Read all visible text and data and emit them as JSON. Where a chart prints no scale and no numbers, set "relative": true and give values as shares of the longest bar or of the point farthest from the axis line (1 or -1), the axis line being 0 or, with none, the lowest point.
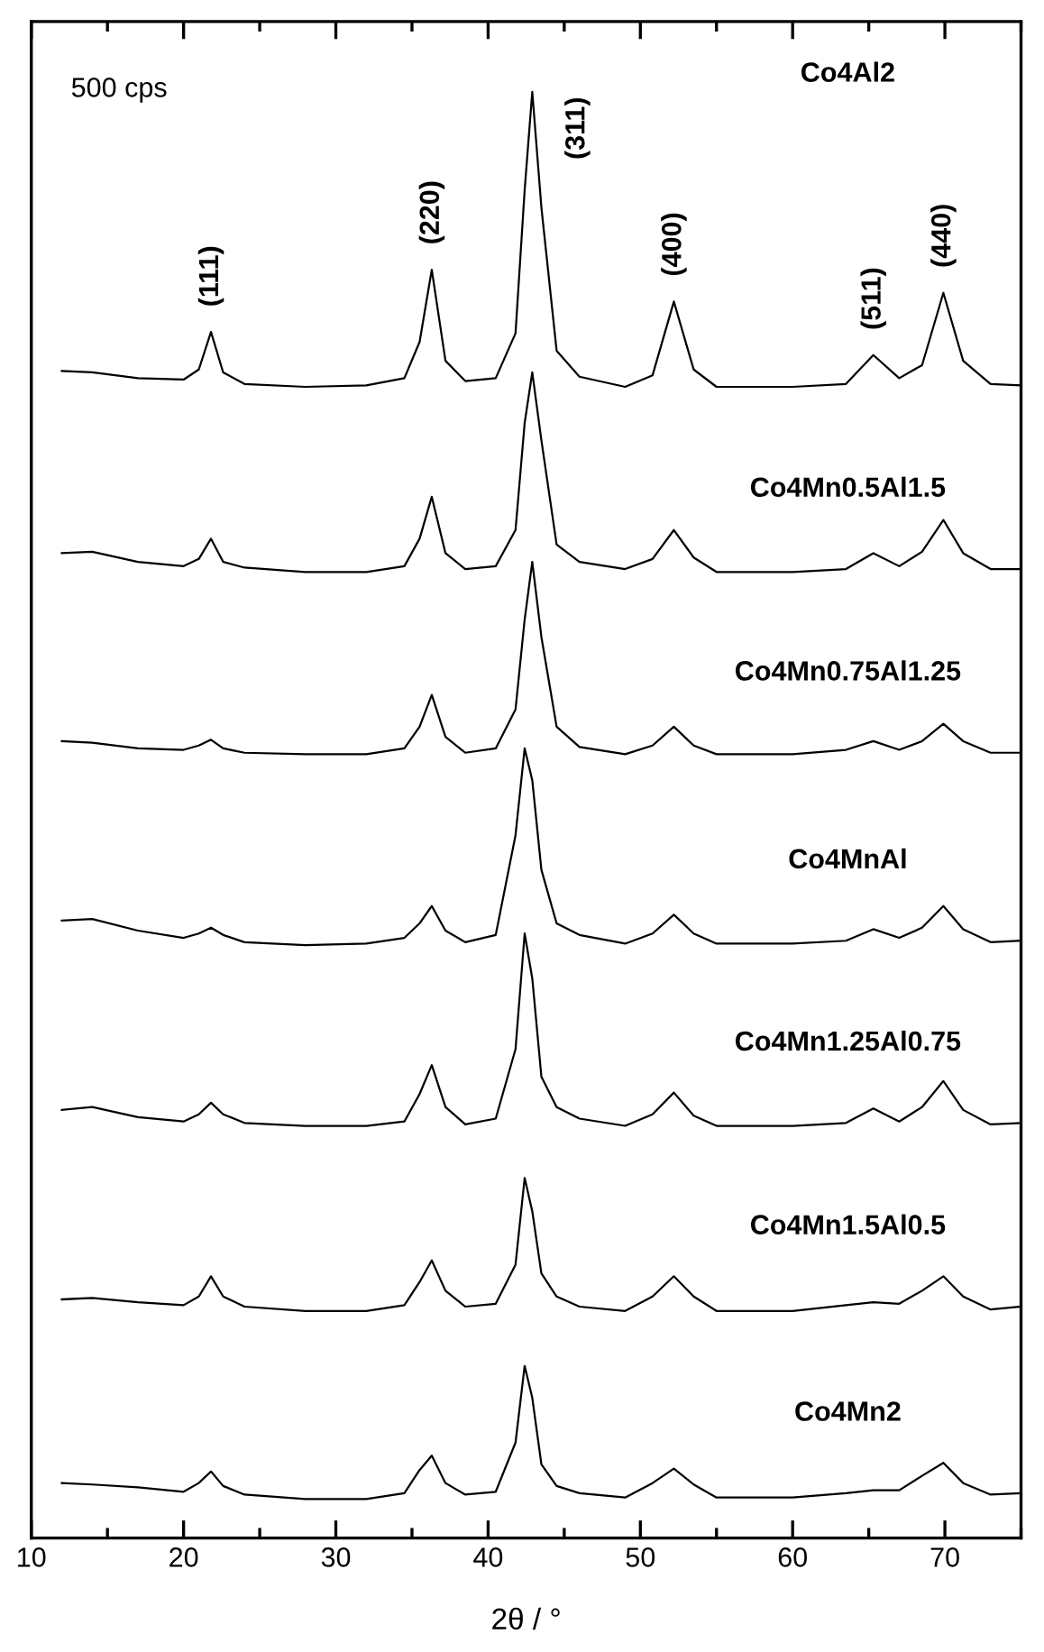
{
  "chart_data": {
    "type": "line",
    "relative": true,
    "xlabel": "2θ / °",
    "tick_labels": "x",
    "xlim": [
      10,
      75
    ],
    "xticks": [
      10,
      {
        "value": 15,
        "label": null
      },
      20,
      {
        "value": 25,
        "label": null
      },
      30,
      {
        "value": 35,
        "label": null
      },
      40,
      {
        "value": 45,
        "label": null
      },
      50,
      {
        "value": 55,
        "label": null
      },
      60,
      {
        "value": 65,
        "label": null
      },
      70,
      {
        "value": 75,
        "label": null
      }
    ],
    "x": [
      12,
      14,
      17,
      20,
      21,
      21.8,
      22.6,
      24,
      28,
      32,
      34.5,
      35.5,
      36.3,
      37.2,
      38.5,
      40.5,
      41.8,
      42.4,
      42.9,
      43.5,
      44.5,
      46,
      49,
      50.8,
      52.2,
      53.5,
      55,
      60,
      63.5,
      65.3,
      67,
      68.5,
      69.9,
      71.2,
      73,
      75
    ],
    "series": [
      {
        "name": "Co4Al2",
        "color": "#000000",
        "values": [
          0.807,
          0.806,
          0.802,
          0.801,
          0.808,
          0.834,
          0.806,
          0.798,
          0.796,
          0.797,
          0.802,
          0.827,
          0.877,
          0.814,
          0.8,
          0.802,
          0.833,
          0.932,
          1.0,
          0.92,
          0.821,
          0.803,
          0.796,
          0.804,
          0.855,
          0.808,
          0.796,
          0.796,
          0.798,
          0.818,
          0.802,
          0.811,
          0.861,
          0.814,
          0.798,
          0.797
        ]
      },
      {
        "name": "Co4Mn0.5Al1.5",
        "color": "#000000",
        "values": [
          0.681,
          0.682,
          0.675,
          0.672,
          0.677,
          0.691,
          0.675,
          0.671,
          0.668,
          0.668,
          0.672,
          0.691,
          0.72,
          0.681,
          0.67,
          0.672,
          0.697,
          0.771,
          0.806,
          0.759,
          0.687,
          0.675,
          0.67,
          0.677,
          0.697,
          0.678,
          0.668,
          0.668,
          0.67,
          0.681,
          0.672,
          0.682,
          0.704,
          0.681,
          0.67,
          0.67
        ]
      },
      {
        "name": "Co4Mn0.75Al1.25",
        "color": "#000000",
        "values": [
          0.551,
          0.55,
          0.546,
          0.545,
          0.548,
          0.552,
          0.546,
          0.543,
          0.542,
          0.542,
          0.546,
          0.561,
          0.583,
          0.554,
          0.543,
          0.546,
          0.573,
          0.635,
          0.675,
          0.623,
          0.561,
          0.547,
          0.542,
          0.548,
          0.561,
          0.548,
          0.542,
          0.542,
          0.545,
          0.551,
          0.545,
          0.551,
          0.563,
          0.551,
          0.543,
          0.543
        ]
      },
      {
        "name": "Co4MnAl",
        "color": "#000000",
        "values": [
          0.427,
          0.428,
          0.42,
          0.415,
          0.418,
          0.422,
          0.417,
          0.412,
          0.41,
          0.411,
          0.415,
          0.425,
          0.437,
          0.42,
          0.412,
          0.417,
          0.486,
          0.546,
          0.524,
          0.462,
          0.425,
          0.417,
          0.411,
          0.418,
          0.431,
          0.418,
          0.411,
          0.411,
          0.413,
          0.421,
          0.415,
          0.422,
          0.437,
          0.421,
          0.412,
          0.413
        ]
      },
      {
        "name": "Co4Mn1.25Al0.75",
        "color": "#000000",
        "values": [
          0.296,
          0.298,
          0.291,
          0.288,
          0.293,
          0.301,
          0.293,
          0.287,
          0.285,
          0.285,
          0.288,
          0.307,
          0.327,
          0.298,
          0.286,
          0.29,
          0.338,
          0.418,
          0.387,
          0.319,
          0.298,
          0.29,
          0.285,
          0.293,
          0.308,
          0.292,
          0.285,
          0.285,
          0.287,
          0.297,
          0.288,
          0.298,
          0.316,
          0.296,
          0.286,
          0.287
        ]
      },
      {
        "name": "Co4Mn1.5Al0.5",
        "color": "#000000",
        "values": [
          0.165,
          0.166,
          0.163,
          0.161,
          0.167,
          0.181,
          0.167,
          0.16,
          0.157,
          0.157,
          0.161,
          0.177,
          0.192,
          0.171,
          0.16,
          0.162,
          0.189,
          0.249,
          0.226,
          0.183,
          0.167,
          0.16,
          0.157,
          0.167,
          0.181,
          0.167,
          0.157,
          0.157,
          0.161,
          0.163,
          0.162,
          0.171,
          0.181,
          0.167,
          0.158,
          0.16
        ]
      },
      {
        "name": "Co4Mn2",
        "color": "#000000",
        "values": [
          0.038,
          0.037,
          0.035,
          0.032,
          0.038,
          0.046,
          0.036,
          0.03,
          0.027,
          0.027,
          0.031,
          0.047,
          0.057,
          0.038,
          0.03,
          0.032,
          0.066,
          0.119,
          0.097,
          0.051,
          0.036,
          0.031,
          0.028,
          0.038,
          0.048,
          0.037,
          0.028,
          0.028,
          0.031,
          0.033,
          0.033,
          0.043,
          0.052,
          0.038,
          0.03,
          0.031
        ]
      }
    ],
    "annotations": [
      "500 cps",
      {
        "text": "(111)",
        "x": 21.8,
        "y": 0.834
      },
      {
        "text": "(220)",
        "x": 36.3,
        "y": 0.877
      },
      {
        "text": "(311)",
        "x": 42.9,
        "y": 1.0
      },
      {
        "text": "(400)",
        "x": 52.2,
        "y": 0.855
      },
      {
        "text": "(511)",
        "x": 65.3,
        "y": 0.818
      },
      {
        "text": "(440)",
        "x": 69.9,
        "y": 0.861
      }
    ]
  }
}
